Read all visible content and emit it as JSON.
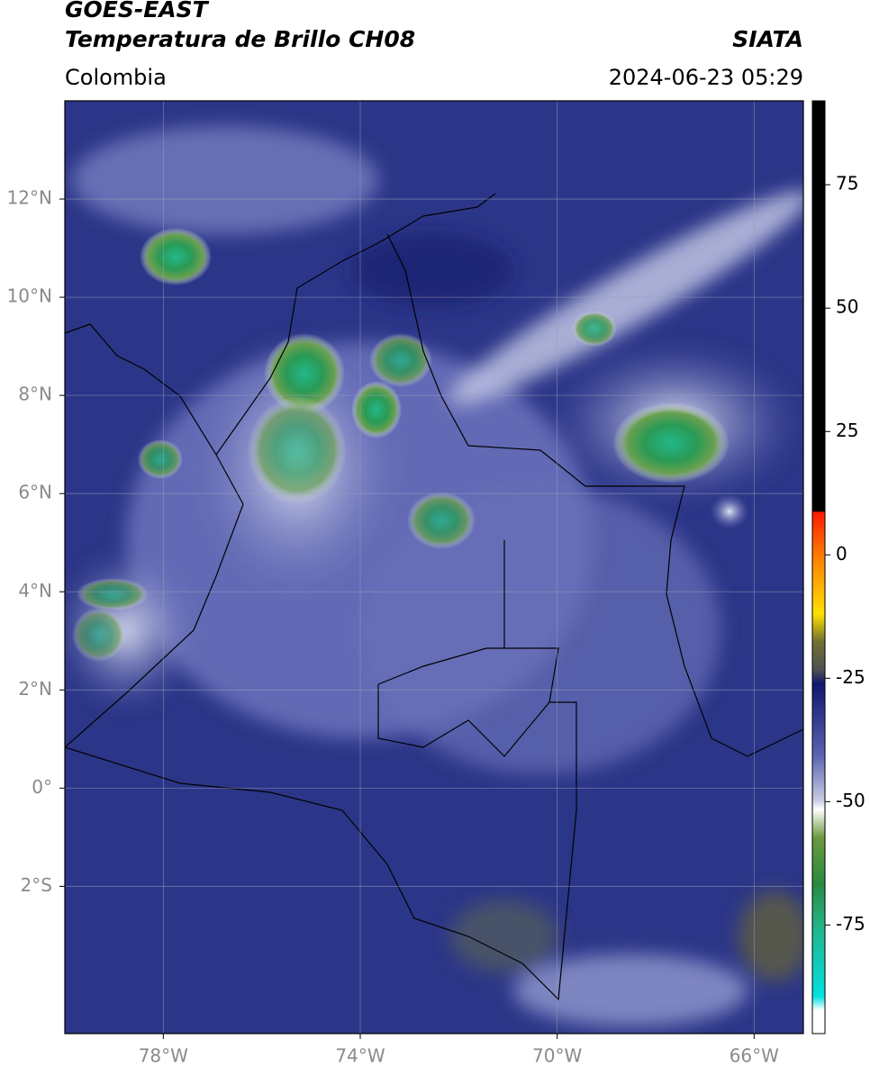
{
  "header": {
    "title": "GOES-EAST",
    "subtitle": "Temperatura de Brillo CH08",
    "source": "SIATA",
    "region": "Colombia",
    "datetime": "2024-06-23 05:29"
  },
  "map": {
    "xlim": [
      -80,
      -65
    ],
    "ylim": [
      -5,
      14
    ],
    "xticks": [
      {
        "value": -78,
        "label": "78°W"
      },
      {
        "value": -74,
        "label": "74°W"
      },
      {
        "value": -70,
        "label": "70°W"
      },
      {
        "value": -66,
        "label": "66°W"
      }
    ],
    "yticks": [
      {
        "value": 12,
        "label": "12°N"
      },
      {
        "value": 10,
        "label": "10°N"
      },
      {
        "value": 8,
        "label": "8°N"
      },
      {
        "value": 6,
        "label": "6°N"
      },
      {
        "value": 4,
        "label": "4°N"
      },
      {
        "value": 2,
        "label": "2°N"
      },
      {
        "value": 0,
        "label": "0°"
      },
      {
        "value": -2,
        "label": "2°S"
      }
    ],
    "grid": true
  },
  "colorbar": {
    "lim": [
      -97,
      92
    ],
    "ticks": [
      75,
      50,
      25,
      0,
      -25,
      -50,
      -75
    ]
  }
}
